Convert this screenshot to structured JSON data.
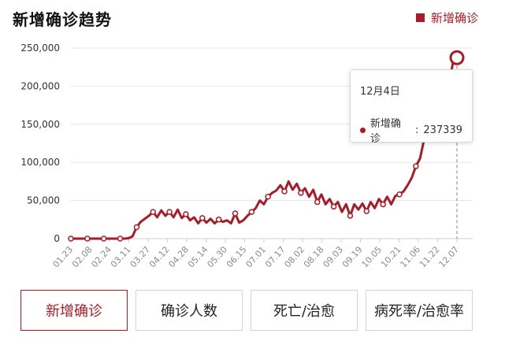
{
  "chart_data": {
    "type": "line",
    "title": "新增确诊趋势",
    "legend": {
      "label": "新增确诊",
      "placement": "top-right"
    },
    "ylim": [
      0,
      250000
    ],
    "y_ticks": [
      "0",
      "50,000",
      "100,000",
      "150,000",
      "200,000",
      "250,000"
    ],
    "x_ticks": [
      "01.23",
      "02.08",
      "02.24",
      "03.11",
      "03.27",
      "04.12",
      "04.28",
      "05.14",
      "05.30",
      "06.15",
      "07.01",
      "07.17",
      "08.02",
      "08.18",
      "09.03",
      "09.19",
      "10.05",
      "10.21",
      "11.06",
      "11.22",
      "12.07"
    ],
    "grid": true,
    "series": [
      {
        "name": "新增确诊",
        "color": "#a81c28",
        "x_start": "01.23",
        "x_step_days": 4,
        "values": [
          0,
          0,
          0,
          0,
          0,
          0,
          0,
          0,
          0,
          0,
          0,
          0,
          0,
          0,
          500,
          3000,
          15000,
          22000,
          26000,
          30000,
          35000,
          28000,
          37000,
          30000,
          35000,
          28000,
          38000,
          27000,
          32000,
          24000,
          28000,
          20000,
          27000,
          21000,
          26000,
          20000,
          25000,
          22000,
          24000,
          20000,
          33000,
          21000,
          24000,
          30000,
          35000,
          40000,
          50000,
          45000,
          55000,
          60000,
          63000,
          70000,
          62000,
          75000,
          64000,
          72000,
          60000,
          66000,
          55000,
          64000,
          48000,
          58000,
          45000,
          52000,
          42000,
          48000,
          35000,
          45000,
          30000,
          45000,
          38000,
          46000,
          36000,
          48000,
          40000,
          52000,
          45000,
          55000,
          45000,
          56000,
          58000,
          62000,
          70000,
          80000,
          95000,
          105000,
          130000,
          140000,
          150000,
          165000,
          185000,
          180000,
          200000,
          230000,
          237339
        ]
      }
    ],
    "tooltip": {
      "date": "12月4日",
      "label": "新增确诊",
      "value": "237339",
      "separator": ":"
    }
  },
  "tabs": [
    {
      "label": "新增确诊",
      "active": true
    },
    {
      "label": "确诊人数",
      "active": false
    },
    {
      "label": "死亡/治愈",
      "active": false
    },
    {
      "label": "病死率/治愈率",
      "active": false
    }
  ]
}
